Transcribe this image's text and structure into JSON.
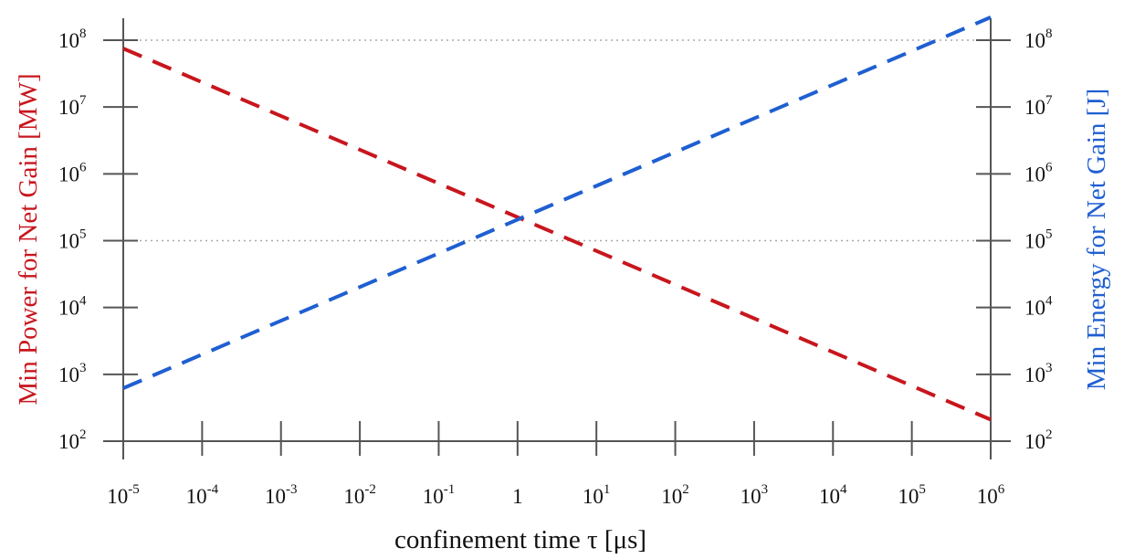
{
  "chart_data": {
    "type": "line",
    "xlabel": "confinement time τ [μs]",
    "ylabel_left": "Min Power for Net Gain [MW]",
    "ylabel_right": "Min Energy for Net Gain [J]",
    "x_scale": "log",
    "y_scale": "log",
    "xlim": [
      1e-05,
      1000000.0
    ],
    "ylim": [
      100,
      100000000
    ],
    "x_ticks": [
      {
        "value": 1e-05,
        "base": "10",
        "exp": "-5"
      },
      {
        "value": 0.0001,
        "base": "10",
        "exp": "-4"
      },
      {
        "value": 0.001,
        "base": "10",
        "exp": "-3"
      },
      {
        "value": 0.01,
        "base": "10",
        "exp": "-2"
      },
      {
        "value": 0.1,
        "base": "10",
        "exp": "-1"
      },
      {
        "value": 1,
        "base": "1",
        "exp": ""
      },
      {
        "value": 10,
        "base": "10",
        "exp": "1"
      },
      {
        "value": 100,
        "base": "10",
        "exp": "2"
      },
      {
        "value": 1000,
        "base": "10",
        "exp": "3"
      },
      {
        "value": 10000,
        "base": "10",
        "exp": "4"
      },
      {
        "value": 100000,
        "base": "10",
        "exp": "5"
      },
      {
        "value": 1000000,
        "base": "10",
        "exp": "6"
      }
    ],
    "y_ticks": [
      {
        "value": 100,
        "base": "10",
        "exp": "2"
      },
      {
        "value": 1000,
        "base": "10",
        "exp": "3"
      },
      {
        "value": 10000,
        "base": "10",
        "exp": "4"
      },
      {
        "value": 100000,
        "base": "10",
        "exp": "5"
      },
      {
        "value": 1000000,
        "base": "10",
        "exp": "6"
      },
      {
        "value": 10000000,
        "base": "10",
        "exp": "7"
      },
      {
        "value": 100000000,
        "base": "10",
        "exp": "8"
      }
    ],
    "gridlines_y": [
      100000,
      100000000
    ],
    "grid": "dotted horizontal lines at 10^5 and 10^8",
    "series": [
      {
        "axis": "left",
        "color": "#c8161d",
        "style": "dashed",
        "x": [
          1e-05,
          1000000.0
        ],
        "y": [
          75000000,
          210
        ]
      },
      {
        "axis": "right",
        "color": "#1f5fd1",
        "style": "dashed",
        "x": [
          1e-05,
          1000000.0
        ],
        "y": [
          620,
          220000000
        ]
      }
    ],
    "colors": {
      "left_axis_title": "#c8161d",
      "right_axis_title": "#1f5fd1",
      "axis": "#555555",
      "grid": "#aaaaaa"
    }
  }
}
